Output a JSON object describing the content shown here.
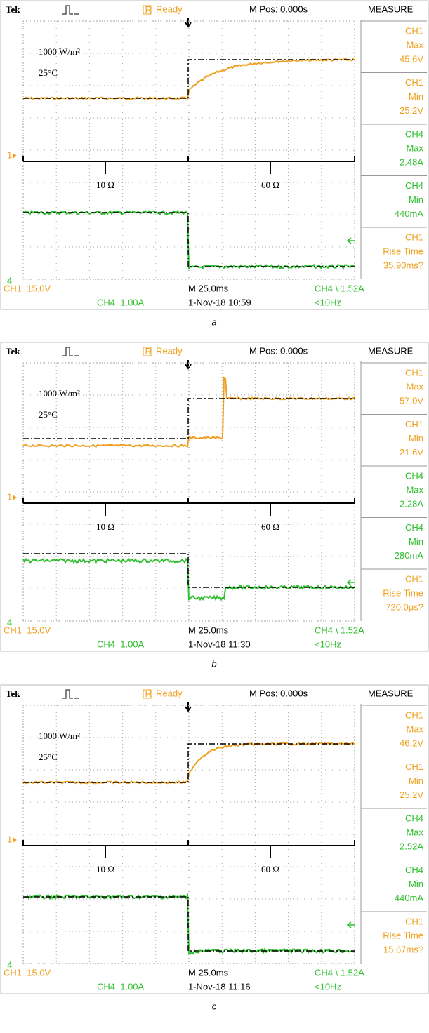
{
  "panels": [
    {
      "header": {
        "brand": "Tek",
        "status": "Ready",
        "position": "M Pos: 0.000s",
        "measure_title": "MEASURE"
      },
      "annotations": {
        "irradiance": "1000 W/m²",
        "temperature": "25°C",
        "load_before": "10 Ω",
        "load_after": "60 Ω",
        "ch1_marker": "1",
        "ch4_marker": "4"
      },
      "measurements": [
        {
          "channel": "CH1",
          "quantity": "Max",
          "value": "45.6V"
        },
        {
          "channel": "CH1",
          "quantity": "Min",
          "value": "25.2V"
        },
        {
          "channel": "CH4",
          "quantity": "Max",
          "value": "2.48A"
        },
        {
          "channel": "CH4",
          "quantity": "Min",
          "value": "440mA"
        },
        {
          "channel": "CH1",
          "quantity": "Rise Time",
          "value": "35.90ms?"
        }
      ],
      "footer": {
        "ch1_scale": "CH1  15.0V",
        "ch4_scale": "CH4  1.00A",
        "timebase": "M 25.0ms",
        "timestamp": "1-Nov-18 10:59",
        "trigger": "CH4 \\ 1.52A",
        "frequency": "<10Hz"
      },
      "caption": "a"
    },
    {
      "header": {
        "brand": "Tek",
        "status": "Ready",
        "position": "M Pos: 0.000s",
        "measure_title": "MEASURE"
      },
      "annotations": {
        "irradiance": "1000 W/m²",
        "temperature": "25°C",
        "load_before": "10 Ω",
        "load_after": "60 Ω",
        "ch1_marker": "1",
        "ch4_marker": "4"
      },
      "measurements": [
        {
          "channel": "CH1",
          "quantity": "Max",
          "value": "57.0V"
        },
        {
          "channel": "CH1",
          "quantity": "Min",
          "value": "21.6V"
        },
        {
          "channel": "CH4",
          "quantity": "Max",
          "value": "2.28A"
        },
        {
          "channel": "CH4",
          "quantity": "Min",
          "value": "280mA"
        },
        {
          "channel": "CH1",
          "quantity": "Rise Time",
          "value": "720.0μs?"
        }
      ],
      "footer": {
        "ch1_scale": "CH1  15.0V",
        "ch4_scale": "CH4  1.00A",
        "timebase": "M 25.0ms",
        "timestamp": "1-Nov-18 11:30",
        "trigger": "CH4 \\ 1.52A",
        "frequency": "<10Hz"
      },
      "caption": "b"
    },
    {
      "header": {
        "brand": "Tek",
        "status": "Ready",
        "position": "M Pos: 0.000s",
        "measure_title": "MEASURE"
      },
      "annotations": {
        "irradiance": "1000 W/m²",
        "temperature": "25°C",
        "load_before": "10 Ω",
        "load_after": "60 Ω",
        "ch1_marker": "1",
        "ch4_marker": "4"
      },
      "measurements": [
        {
          "channel": "CH1",
          "quantity": "Max",
          "value": "46.2V"
        },
        {
          "channel": "CH1",
          "quantity": "Min",
          "value": "25.2V"
        },
        {
          "channel": "CH4",
          "quantity": "Max",
          "value": "2.52A"
        },
        {
          "channel": "CH4",
          "quantity": "Min",
          "value": "440mA"
        },
        {
          "channel": "CH1",
          "quantity": "Rise Time",
          "value": "15.67ms?"
        }
      ],
      "footer": {
        "ch1_scale": "CH1  15.0V",
        "ch4_scale": "CH4  1.00A",
        "timebase": "M 25.0ms",
        "timestamp": "1-Nov-18 11:16",
        "trigger": "CH4 \\ 1.52A",
        "frequency": "<10Hz"
      },
      "caption": "c"
    }
  ]
}
